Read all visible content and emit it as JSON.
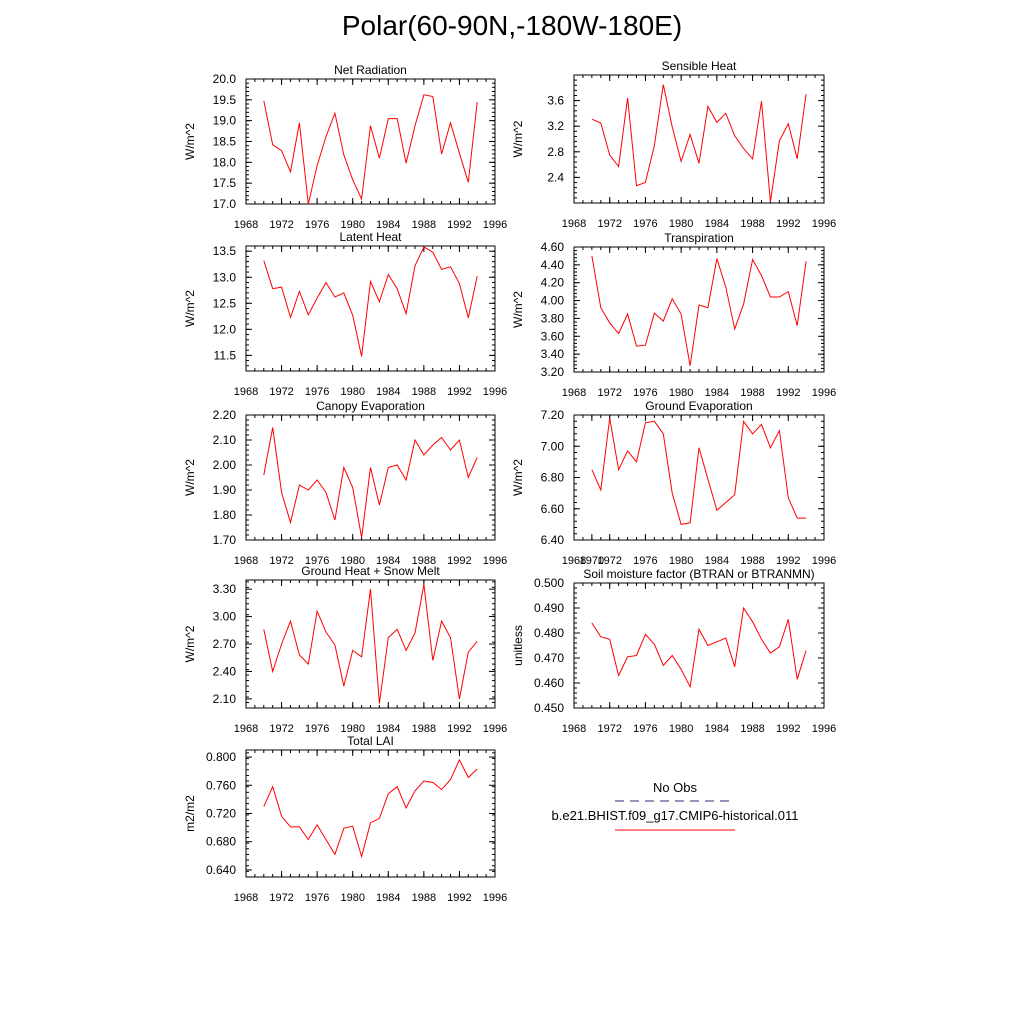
{
  "title": "Polar(60-90N,-180W-180E)",
  "colors": {
    "series": "#ff0000",
    "obs_legend": "#2a2a7a",
    "axis": "#000000"
  },
  "legend": {
    "obs_label": "No Obs",
    "model_label": "b.e21.BHIST.f09_g17.CMIP6-historical.011"
  },
  "chart_data": [
    {
      "type": "line",
      "title": "Net Radiation",
      "ylabel": "W/m^2",
      "xlim": [
        1968,
        1996
      ],
      "ylim": [
        17.0,
        20.0
      ],
      "xticks": [
        "1968",
        "1972",
        "1976",
        "1980",
        "1984",
        "1988",
        "1992",
        "1996"
      ],
      "yticks": [
        "17.0",
        "17.5",
        "18.0",
        "18.5",
        "19.0",
        "19.5",
        "20.0"
      ],
      "x": [
        1970,
        1971,
        1972,
        1973,
        1974,
        1975,
        1976,
        1977,
        1978,
        1979,
        1980,
        1981,
        1982,
        1983,
        1984,
        1985,
        1986,
        1987,
        1988,
        1989,
        1990,
        1991,
        1992,
        1993,
        1994
      ],
      "series": [
        {
          "values": [
            19.48,
            18.42,
            18.28,
            17.77,
            18.95,
            17.0,
            17.92,
            18.62,
            19.18,
            18.18,
            17.58,
            17.12,
            18.88,
            18.1,
            19.05,
            19.05,
            17.98,
            18.88,
            19.62,
            19.58,
            18.2,
            18.95,
            18.22,
            17.52,
            19.45
          ]
        }
      ]
    },
    {
      "type": "line",
      "title": "Sensible Heat",
      "ylabel": "W/m^2",
      "xlim": [
        1968,
        1996
      ],
      "ylim": [
        2.0,
        4.0
      ],
      "xticks": [
        "1968",
        "1972",
        "1976",
        "1980",
        "1984",
        "1988",
        "1992",
        "1996"
      ],
      "yticks": [
        "2.4",
        "2.8",
        "3.2",
        "3.6"
      ],
      "x": [
        1970,
        1971,
        1972,
        1973,
        1974,
        1975,
        1976,
        1977,
        1978,
        1979,
        1980,
        1981,
        1982,
        1983,
        1984,
        1985,
        1986,
        1987,
        1988,
        1989,
        1990,
        1991,
        1992,
        1993,
        1994
      ],
      "series": [
        {
          "values": [
            3.31,
            3.25,
            2.75,
            2.57,
            3.64,
            2.27,
            2.32,
            2.9,
            3.85,
            3.19,
            2.65,
            3.07,
            2.62,
            3.51,
            3.26,
            3.4,
            3.05,
            2.85,
            2.69,
            3.59,
            2.02,
            2.97,
            3.24,
            2.69,
            3.7
          ]
        }
      ]
    },
    {
      "type": "line",
      "title": "Latent Heat",
      "ylabel": "W/m^2",
      "xlim": [
        1968,
        1996
      ],
      "ylim": [
        11.2,
        13.6
      ],
      "xticks": [
        "1968",
        "1972",
        "1976",
        "1980",
        "1984",
        "1988",
        "1992",
        "1996"
      ],
      "yticks": [
        "11.5",
        "12.0",
        "12.5",
        "13.0",
        "13.5"
      ],
      "x": [
        1970,
        1971,
        1972,
        1973,
        1974,
        1975,
        1976,
        1977,
        1978,
        1979,
        1980,
        1981,
        1982,
        1983,
        1984,
        1985,
        1986,
        1987,
        1988,
        1989,
        1990,
        1991,
        1992,
        1993,
        1994
      ],
      "series": [
        {
          "values": [
            13.32,
            12.78,
            12.81,
            12.23,
            12.73,
            12.28,
            12.6,
            12.9,
            12.62,
            12.7,
            12.27,
            11.48,
            12.92,
            12.53,
            13.05,
            12.78,
            12.3,
            13.22,
            13.58,
            13.48,
            13.15,
            13.2,
            12.88,
            12.22,
            13.02
          ]
        }
      ]
    },
    {
      "type": "line",
      "title": "Transpiration",
      "ylabel": "W/m^2",
      "xlim": [
        1968,
        1996
      ],
      "ylim": [
        3.2,
        4.6
      ],
      "xticks": [
        "1968",
        "1972",
        "1976",
        "1980",
        "1984",
        "1988",
        "1992",
        "1996"
      ],
      "yticks": [
        "3.20",
        "3.40",
        "3.60",
        "3.80",
        "4.00",
        "4.20",
        "4.40",
        "4.60"
      ],
      "x": [
        1970,
        1971,
        1972,
        1973,
        1974,
        1975,
        1976,
        1977,
        1978,
        1979,
        1980,
        1981,
        1982,
        1983,
        1984,
        1985,
        1986,
        1987,
        1988,
        1989,
        1990,
        1991,
        1992,
        1993,
        1994
      ],
      "series": [
        {
          "values": [
            4.5,
            3.92,
            3.75,
            3.63,
            3.85,
            3.49,
            3.5,
            3.86,
            3.77,
            4.02,
            3.85,
            3.27,
            3.95,
            3.92,
            4.47,
            4.15,
            3.68,
            3.96,
            4.46,
            4.28,
            4.04,
            4.04,
            4.1,
            3.72,
            4.44
          ]
        }
      ]
    },
    {
      "type": "line",
      "title": "Canopy Evaporation",
      "ylabel": "W/m^2",
      "xlim": [
        1968,
        1996
      ],
      "ylim": [
        1.7,
        2.2
      ],
      "xticks": [
        "1968",
        "1972",
        "1976",
        "1980",
        "1984",
        "1988",
        "1992",
        "1996"
      ],
      "yticks": [
        "1.70",
        "1.80",
        "1.90",
        "2.00",
        "2.10",
        "2.20"
      ],
      "x": [
        1970,
        1971,
        1972,
        1973,
        1974,
        1975,
        1976,
        1977,
        1978,
        1979,
        1980,
        1981,
        1982,
        1983,
        1984,
        1985,
        1986,
        1987,
        1988,
        1989,
        1990,
        1991,
        1992,
        1993,
        1994
      ],
      "series": [
        {
          "values": [
            1.96,
            2.15,
            1.89,
            1.77,
            1.92,
            1.9,
            1.94,
            1.89,
            1.78,
            1.99,
            1.91,
            1.71,
            1.99,
            1.84,
            1.99,
            2.0,
            1.94,
            2.1,
            2.04,
            2.08,
            2.11,
            2.06,
            2.1,
            1.95,
            2.03
          ]
        }
      ]
    },
    {
      "type": "line",
      "title": "Ground Evaporation",
      "ylabel": "W/m^2",
      "xlim": [
        1968,
        1996
      ],
      "ylim": [
        6.4,
        7.2
      ],
      "xticks": [
        "1968",
        "1970",
        "1972",
        "1976",
        "1980",
        "1984",
        "1988",
        "1992",
        "1996"
      ],
      "yticks": [
        "6.40",
        "6.60",
        "6.80",
        "7.00",
        "7.20"
      ],
      "x": [
        1970,
        1971,
        1972,
        1973,
        1974,
        1975,
        1976,
        1977,
        1978,
        1979,
        1980,
        1981,
        1982,
        1983,
        1984,
        1985,
        1986,
        1987,
        1988,
        1989,
        1990,
        1991,
        1992,
        1993,
        1994
      ],
      "series": [
        {
          "values": [
            6.85,
            6.72,
            7.18,
            6.85,
            6.97,
            6.9,
            7.15,
            7.16,
            7.08,
            6.7,
            6.5,
            6.51,
            6.99,
            6.79,
            6.59,
            6.64,
            6.69,
            7.16,
            7.08,
            7.14,
            6.99,
            7.1,
            6.67,
            6.54,
            6.54
          ]
        }
      ]
    },
    {
      "type": "line",
      "title": "Ground Heat + Snow Melt",
      "ylabel": "W/m^2",
      "xlim": [
        1968,
        1996
      ],
      "ylim": [
        2.0,
        3.4
      ],
      "xticks": [
        "1968",
        "1972",
        "1976",
        "1980",
        "1984",
        "1988",
        "1992",
        "1996"
      ],
      "yticks": [
        "2.10",
        "2.40",
        "2.70",
        "3.00",
        "3.30"
      ],
      "x": [
        1970,
        1971,
        1972,
        1973,
        1974,
        1975,
        1976,
        1977,
        1978,
        1979,
        1980,
        1981,
        1982,
        1983,
        1984,
        1985,
        1986,
        1987,
        1988,
        1989,
        1990,
        1991,
        1992,
        1993,
        1994
      ],
      "series": [
        {
          "values": [
            2.86,
            2.4,
            2.7,
            2.95,
            2.58,
            2.48,
            3.06,
            2.83,
            2.69,
            2.24,
            2.63,
            2.56,
            3.3,
            2.05,
            2.77,
            2.86,
            2.63,
            2.82,
            3.35,
            2.52,
            2.95,
            2.77,
            2.1,
            2.61,
            2.73
          ]
        }
      ]
    },
    {
      "type": "line",
      "title": "Soil moisture factor (BTRAN or BTRANMN)",
      "ylabel": "unitless",
      "xlim": [
        1968,
        1996
      ],
      "ylim": [
        0.45,
        0.5
      ],
      "xticks": [
        "1968",
        "1972",
        "1976",
        "1980",
        "1984",
        "1988",
        "1992",
        "1996"
      ],
      "yticks": [
        "0.450",
        "0.460",
        "0.470",
        "0.480",
        "0.490",
        "0.500"
      ],
      "x": [
        1970,
        1971,
        1972,
        1973,
        1974,
        1975,
        1976,
        1977,
        1978,
        1979,
        1980,
        1981,
        1982,
        1983,
        1984,
        1985,
        1986,
        1987,
        1988,
        1989,
        1990,
        1991,
        1992,
        1993,
        1994
      ],
      "series": [
        {
          "values": [
            0.484,
            0.4785,
            0.4775,
            0.463,
            0.4705,
            0.471,
            0.4795,
            0.4755,
            0.467,
            0.471,
            0.4655,
            0.4585,
            0.4815,
            0.475,
            0.4765,
            0.478,
            0.4665,
            0.49,
            0.4845,
            0.4775,
            0.472,
            0.4745,
            0.4855,
            0.4615,
            0.473
          ]
        }
      ]
    },
    {
      "type": "line",
      "title": "Total LAI",
      "ylabel": "m2/m2",
      "xlim": [
        1968,
        1996
      ],
      "ylim": [
        0.63,
        0.81
      ],
      "xticks": [
        "1968",
        "1972",
        "1976",
        "1980",
        "1984",
        "1988",
        "1992",
        "1996"
      ],
      "yticks": [
        "0.640",
        "0.680",
        "0.720",
        "0.760",
        "0.800"
      ],
      "x": [
        1970,
        1971,
        1972,
        1973,
        1974,
        1975,
        1976,
        1977,
        1978,
        1979,
        1980,
        1981,
        1982,
        1983,
        1984,
        1985,
        1986,
        1987,
        1988,
        1989,
        1990,
        1991,
        1992,
        1993,
        1994
      ],
      "series": [
        {
          "values": [
            0.73,
            0.758,
            0.716,
            0.701,
            0.701,
            0.683,
            0.704,
            0.683,
            0.662,
            0.699,
            0.702,
            0.659,
            0.707,
            0.713,
            0.748,
            0.758,
            0.728,
            0.752,
            0.766,
            0.764,
            0.754,
            0.768,
            0.796,
            0.771,
            0.783
          ]
        }
      ]
    }
  ]
}
